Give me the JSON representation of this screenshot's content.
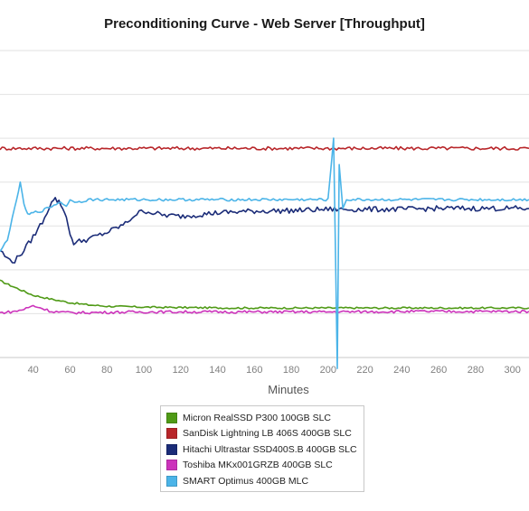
{
  "chart_data": {
    "type": "line",
    "title": "Preconditioning Curve - Web Server [Throughput]",
    "xlabel": "Minutes",
    "ylabel": "",
    "xlim": [
      22,
      309
    ],
    "ylim": [
      0,
      7
    ],
    "x_ticks": [
      40,
      60,
      80,
      100,
      120,
      140,
      160,
      180,
      200,
      220,
      240,
      260,
      280,
      300
    ],
    "grid": "horizontal",
    "legend_position": "bottom",
    "series": [
      {
        "name": "Micron RealSSD P300 100GB SLC",
        "color": "#4f9a16",
        "x": [
          22,
          30,
          40,
          50,
          60,
          70,
          80,
          90,
          100,
          120,
          150,
          200,
          250,
          309
        ],
        "y": [
          1.75,
          1.6,
          1.42,
          1.33,
          1.25,
          1.2,
          1.17,
          1.16,
          1.15,
          1.14,
          1.13,
          1.13,
          1.13,
          1.13
        ]
      },
      {
        "name": "SanDisk Lightning LB 406S 400GB SLC",
        "color": "#b8262a",
        "x": [
          22,
          309
        ],
        "y": [
          4.77,
          4.77
        ]
      },
      {
        "name": "Hitachi Ultrastar SSD400S.B 400GB SLC",
        "color": "#1b2c78",
        "x": [
          22,
          26,
          30,
          35,
          40,
          45,
          50,
          52,
          55,
          58,
          60,
          62,
          65,
          70,
          75,
          80,
          85,
          90,
          95,
          100,
          110,
          120,
          140,
          160,
          180,
          200,
          220,
          240,
          260,
          280,
          309
        ],
        "y": [
          2.45,
          2.25,
          2.2,
          2.45,
          2.75,
          3.1,
          3.55,
          3.62,
          3.5,
          3.2,
          2.8,
          2.62,
          2.65,
          2.7,
          2.78,
          2.85,
          2.95,
          3.05,
          3.25,
          3.35,
          3.25,
          3.22,
          3.3,
          3.34,
          3.35,
          3.38,
          3.38,
          3.38,
          3.4,
          3.4,
          3.4
        ]
      },
      {
        "name": "Toshiba MKx001GRZB 400GB SLC",
        "color": "#cc33bb",
        "x": [
          22,
          30,
          35,
          40,
          45,
          50,
          60,
          80,
          100,
          150,
          200,
          250,
          309
        ],
        "y": [
          1.02,
          1.05,
          1.1,
          1.18,
          1.12,
          1.05,
          1.02,
          1.03,
          1.04,
          1.04,
          1.04,
          1.05,
          1.05
        ]
      },
      {
        "name": "SMART Optimus 400GB MLC",
        "color": "#4bb4e8",
        "x": [
          22,
          26,
          30,
          33,
          35,
          37,
          40,
          45,
          50,
          55,
          58,
          60,
          65,
          70,
          80,
          100,
          150,
          200,
          203,
          205,
          206,
          208,
          210,
          250,
          309
        ],
        "y": [
          2.4,
          2.7,
          3.4,
          4.0,
          3.5,
          3.25,
          3.3,
          3.35,
          3.45,
          3.55,
          3.45,
          3.58,
          3.55,
          3.6,
          3.6,
          3.6,
          3.6,
          3.6,
          5.0,
          -0.25,
          4.4,
          3.4,
          3.6,
          3.6,
          3.6
        ]
      }
    ]
  }
}
